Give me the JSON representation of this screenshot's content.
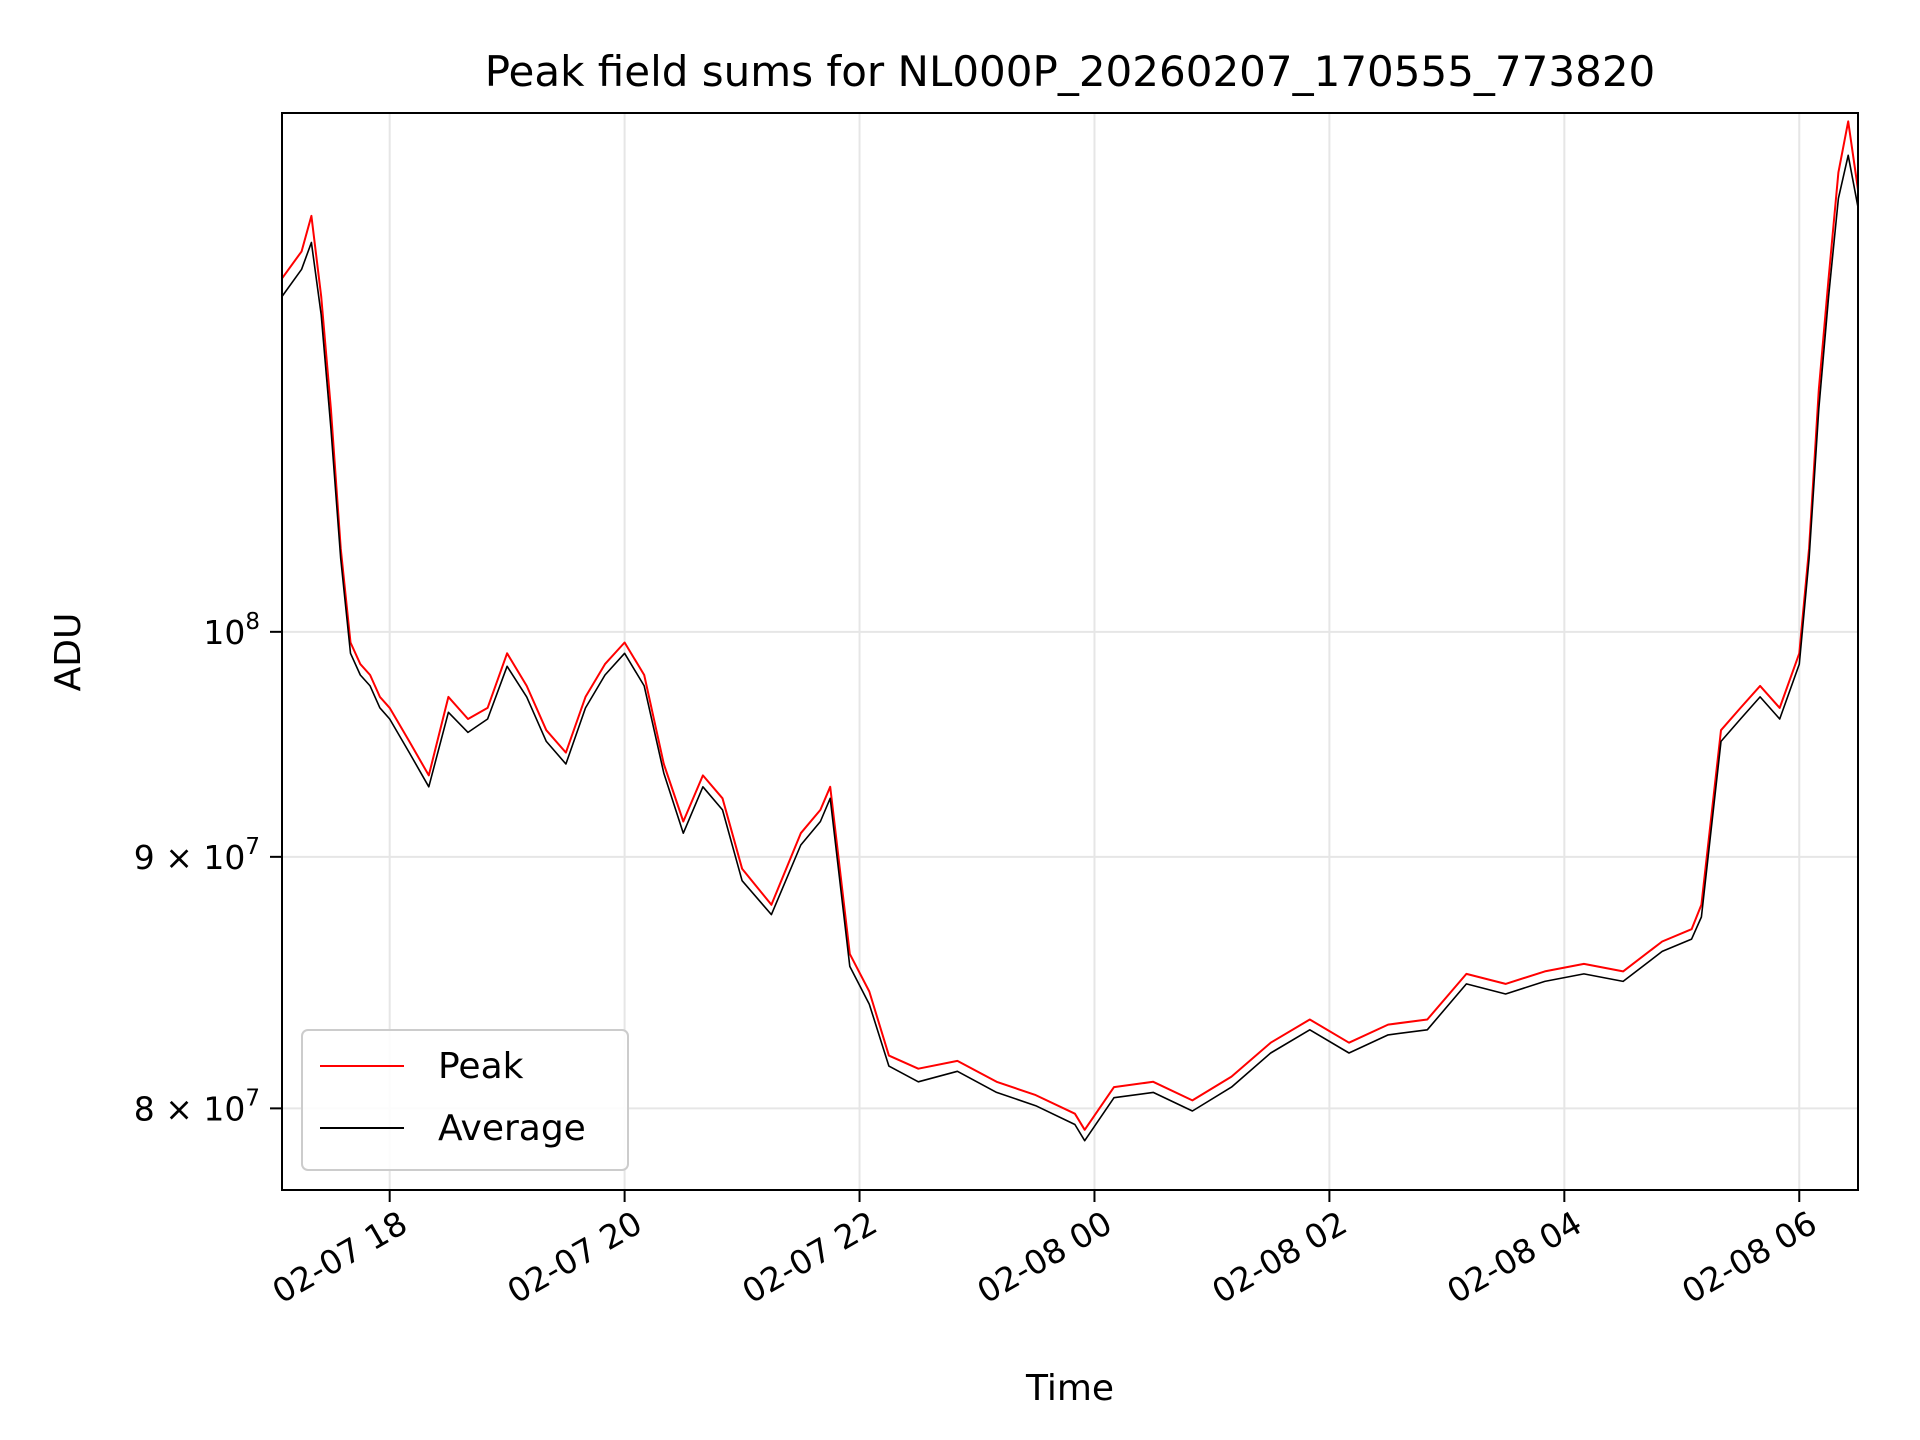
{
  "chart_data": {
    "type": "line",
    "title": "Peak field sums for NL000P_20260207_170555_773820",
    "xlabel": "Time",
    "ylabel": "ADU",
    "yscale": "log",
    "xlim": [
      "2026-02-07 17:05",
      "2026-02-08 06:30"
    ],
    "ylim": [
      77000000,
      127500000
    ],
    "grid": true,
    "legend": "lower-left",
    "x_ticks": [
      {
        "value": "2026-02-07 18:00",
        "label": "02-07 18"
      },
      {
        "value": "2026-02-07 20:00",
        "label": "02-07 20"
      },
      {
        "value": "2026-02-07 22:00",
        "label": "02-07 22"
      },
      {
        "value": "2026-02-08 00:00",
        "label": "02-08 00"
      },
      {
        "value": "2026-02-08 02:00",
        "label": "02-08 02"
      },
      {
        "value": "2026-02-08 04:00",
        "label": "02-08 04"
      },
      {
        "value": "2026-02-08 06:00",
        "label": "02-08 06"
      }
    ],
    "y_ticks": [
      {
        "value": 80000000,
        "mantissa": "8",
        "base": "10",
        "exp": "7"
      },
      {
        "value": 90000000,
        "mantissa": "9",
        "base": "10",
        "exp": "7"
      },
      {
        "value": 100000000,
        "mantissa": "",
        "base": "10",
        "exp": "8"
      }
    ],
    "series": [
      {
        "name": "Peak",
        "color": "#ff0000",
        "x": [
          "2026-02-07 17:05",
          "2026-02-07 17:15",
          "2026-02-07 17:20",
          "2026-02-07 17:25",
          "2026-02-07 17:30",
          "2026-02-07 17:35",
          "2026-02-07 17:40",
          "2026-02-07 17:45",
          "2026-02-07 17:50",
          "2026-02-07 17:55",
          "2026-02-07 18:00",
          "2026-02-07 18:10",
          "2026-02-07 18:20",
          "2026-02-07 18:30",
          "2026-02-07 18:40",
          "2026-02-07 18:50",
          "2026-02-07 19:00",
          "2026-02-07 19:10",
          "2026-02-07 19:20",
          "2026-02-07 19:30",
          "2026-02-07 19:40",
          "2026-02-07 19:50",
          "2026-02-07 20:00",
          "2026-02-07 20:10",
          "2026-02-07 20:20",
          "2026-02-07 20:30",
          "2026-02-07 20:40",
          "2026-02-07 20:50",
          "2026-02-07 21:00",
          "2026-02-07 21:15",
          "2026-02-07 21:30",
          "2026-02-07 21:40",
          "2026-02-07 21:45",
          "2026-02-07 21:55",
          "2026-02-07 22:05",
          "2026-02-07 22:15",
          "2026-02-07 22:30",
          "2026-02-07 22:50",
          "2026-02-07 23:10",
          "2026-02-07 23:30",
          "2026-02-07 23:50",
          "2026-02-07 23:55",
          "2026-02-08 00:10",
          "2026-02-08 00:30",
          "2026-02-08 00:50",
          "2026-02-08 01:10",
          "2026-02-08 01:30",
          "2026-02-08 01:50",
          "2026-02-08 02:10",
          "2026-02-08 02:30",
          "2026-02-08 02:50",
          "2026-02-08 03:10",
          "2026-02-08 03:30",
          "2026-02-08 03:50",
          "2026-02-08 04:10",
          "2026-02-08 04:30",
          "2026-02-08 04:50",
          "2026-02-08 05:05",
          "2026-02-08 05:10",
          "2026-02-08 05:20",
          "2026-02-08 05:30",
          "2026-02-08 05:40",
          "2026-02-08 05:50",
          "2026-02-08 06:00",
          "2026-02-08 06:05",
          "2026-02-08 06:10",
          "2026-02-08 06:15",
          "2026-02-08 06:20",
          "2026-02-08 06:25",
          "2026-02-08 06:30"
        ],
        "values": [
          118000000,
          119500000,
          121500000,
          117000000,
          111000000,
          104000000,
          99500000,
          98500000,
          98000000,
          97000000,
          96500000,
          95000000,
          93500000,
          97000000,
          96000000,
          96500000,
          99000000,
          97500000,
          95500000,
          94500000,
          97000000,
          98500000,
          99500000,
          98000000,
          94000000,
          91500000,
          93500000,
          92500000,
          89500000,
          88000000,
          91000000,
          92000000,
          93000000,
          86000000,
          84500000,
          82000000,
          81500000,
          81800000,
          81000000,
          80500000,
          79800000,
          79200000,
          80800000,
          81000000,
          80300000,
          81200000,
          82500000,
          83400000,
          82500000,
          83200000,
          83400000,
          85200000,
          84800000,
          85300000,
          85600000,
          85300000,
          86500000,
          87000000,
          88000000,
          95500000,
          96500000,
          97500000,
          96500000,
          99000000,
          104000000,
          112000000,
          118000000,
          124000000,
          127000000,
          123000000
        ]
      },
      {
        "name": "Average",
        "color": "#000000",
        "x": [
          "2026-02-07 17:05",
          "2026-02-07 17:15",
          "2026-02-07 17:20",
          "2026-02-07 17:25",
          "2026-02-07 17:30",
          "2026-02-07 17:35",
          "2026-02-07 17:40",
          "2026-02-07 17:45",
          "2026-02-07 17:50",
          "2026-02-07 17:55",
          "2026-02-07 18:00",
          "2026-02-07 18:10",
          "2026-02-07 18:20",
          "2026-02-07 18:30",
          "2026-02-07 18:40",
          "2026-02-07 18:50",
          "2026-02-07 19:00",
          "2026-02-07 19:10",
          "2026-02-07 19:20",
          "2026-02-07 19:30",
          "2026-02-07 19:40",
          "2026-02-07 19:50",
          "2026-02-07 20:00",
          "2026-02-07 20:10",
          "2026-02-07 20:20",
          "2026-02-07 20:30",
          "2026-02-07 20:40",
          "2026-02-07 20:50",
          "2026-02-07 21:00",
          "2026-02-07 21:15",
          "2026-02-07 21:30",
          "2026-02-07 21:40",
          "2026-02-07 21:45",
          "2026-02-07 21:55",
          "2026-02-07 22:05",
          "2026-02-07 22:15",
          "2026-02-07 22:30",
          "2026-02-07 22:50",
          "2026-02-07 23:10",
          "2026-02-07 23:30",
          "2026-02-07 23:50",
          "2026-02-07 23:55",
          "2026-02-08 00:10",
          "2026-02-08 00:30",
          "2026-02-08 00:50",
          "2026-02-08 01:10",
          "2026-02-08 01:30",
          "2026-02-08 01:50",
          "2026-02-08 02:10",
          "2026-02-08 02:30",
          "2026-02-08 02:50",
          "2026-02-08 03:10",
          "2026-02-08 03:30",
          "2026-02-08 03:50",
          "2026-02-08 04:10",
          "2026-02-08 04:30",
          "2026-02-08 04:50",
          "2026-02-08 05:05",
          "2026-02-08 05:10",
          "2026-02-08 05:20",
          "2026-02-08 05:30",
          "2026-02-08 05:40",
          "2026-02-08 05:50",
          "2026-02-08 06:00",
          "2026-02-08 06:05",
          "2026-02-08 06:10",
          "2026-02-08 06:15",
          "2026-02-08 06:20",
          "2026-02-08 06:25",
          "2026-02-08 06:30"
        ],
        "values": [
          117000000,
          118500000,
          120000000,
          116000000,
          110000000,
          103500000,
          99000000,
          98000000,
          97500000,
          96500000,
          96000000,
          94500000,
          93000000,
          96300000,
          95400000,
          96000000,
          98400000,
          97000000,
          95000000,
          94000000,
          96500000,
          98000000,
          99000000,
          97500000,
          93600000,
          91000000,
          93000000,
          92000000,
          89000000,
          87600000,
          90500000,
          91500000,
          92500000,
          85500000,
          84000000,
          81600000,
          81000000,
          81400000,
          80600000,
          80100000,
          79400000,
          78800000,
          80400000,
          80600000,
          79900000,
          80800000,
          82100000,
          83000000,
          82100000,
          82800000,
          83000000,
          84800000,
          84400000,
          84900000,
          85200000,
          84900000,
          86100000,
          86600000,
          87500000,
          95000000,
          96000000,
          97000000,
          96000000,
          98500000,
          103500000,
          111000000,
          117000000,
          122500000,
          125000000,
          122000000
        ]
      }
    ]
  }
}
